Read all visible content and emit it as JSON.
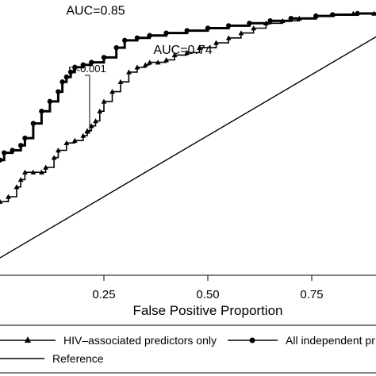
{
  "chart_data": {
    "type": "line",
    "xlabel": "False Positive Proportion",
    "xlim": [
      0,
      1
    ],
    "ylim": [
      0,
      1
    ],
    "x_ticks": [
      "0.25",
      "0.50",
      "0.75"
    ],
    "series": [
      {
        "name": "HIV–associated predictors only",
        "marker": "triangle",
        "color": "#000000",
        "x": [
          0.0,
          0.02,
          0.04,
          0.05,
          0.06,
          0.08,
          0.1,
          0.11,
          0.13,
          0.14,
          0.16,
          0.18,
          0.2,
          0.21,
          0.22,
          0.23,
          0.24,
          0.25,
          0.27,
          0.29,
          0.31,
          0.33,
          0.35,
          0.36,
          0.38,
          0.4,
          0.42,
          0.45,
          0.48,
          0.52,
          0.55,
          0.58,
          0.61,
          0.64,
          0.68,
          0.72,
          0.76,
          0.8,
          0.85,
          0.9,
          1.0
        ],
        "y": [
          0.23,
          0.25,
          0.29,
          0.32,
          0.35,
          0.35,
          0.35,
          0.37,
          0.41,
          0.44,
          0.47,
          0.48,
          0.5,
          0.52,
          0.54,
          0.56,
          0.6,
          0.64,
          0.68,
          0.72,
          0.76,
          0.78,
          0.79,
          0.8,
          0.8,
          0.81,
          0.83,
          0.84,
          0.86,
          0.88,
          0.9,
          0.92,
          0.94,
          0.96,
          0.97,
          0.98,
          0.99,
          0.995,
          1.0,
          1.0,
          1.0
        ]
      },
      {
        "name": "All independent pr",
        "marker": "circle",
        "color": "#000000",
        "x": [
          0.0,
          0.01,
          0.03,
          0.05,
          0.06,
          0.08,
          0.1,
          0.12,
          0.14,
          0.15,
          0.16,
          0.17,
          0.18,
          0.2,
          0.22,
          0.25,
          0.28,
          0.3,
          0.33,
          0.36,
          0.4,
          0.45,
          0.5,
          0.55,
          0.6,
          0.65,
          0.7,
          0.76,
          0.8,
          0.86,
          1.0
        ],
        "y": [
          0.4,
          0.43,
          0.44,
          0.46,
          0.49,
          0.55,
          0.6,
          0.64,
          0.68,
          0.72,
          0.74,
          0.76,
          0.78,
          0.79,
          0.8,
          0.82,
          0.86,
          0.89,
          0.9,
          0.91,
          0.92,
          0.93,
          0.94,
          0.95,
          0.96,
          0.97,
          0.98,
          0.99,
          0.995,
          1.0,
          1.0
        ]
      },
      {
        "name": "Reference",
        "marker": "none",
        "color": "#000000",
        "x": [
          0.0,
          1.0
        ],
        "y": [
          0.0,
          1.0
        ]
      }
    ],
    "annotations": [
      {
        "text": "AUC=0.85",
        "x": 0.23,
        "y": 0.995
      },
      {
        "text": "AUC=0.74",
        "x": 0.44,
        "y": 0.835
      },
      {
        "text": "p<0.001",
        "x": 0.21,
        "y": 0.76
      }
    ],
    "legend_position": "bottom",
    "grid": false
  }
}
